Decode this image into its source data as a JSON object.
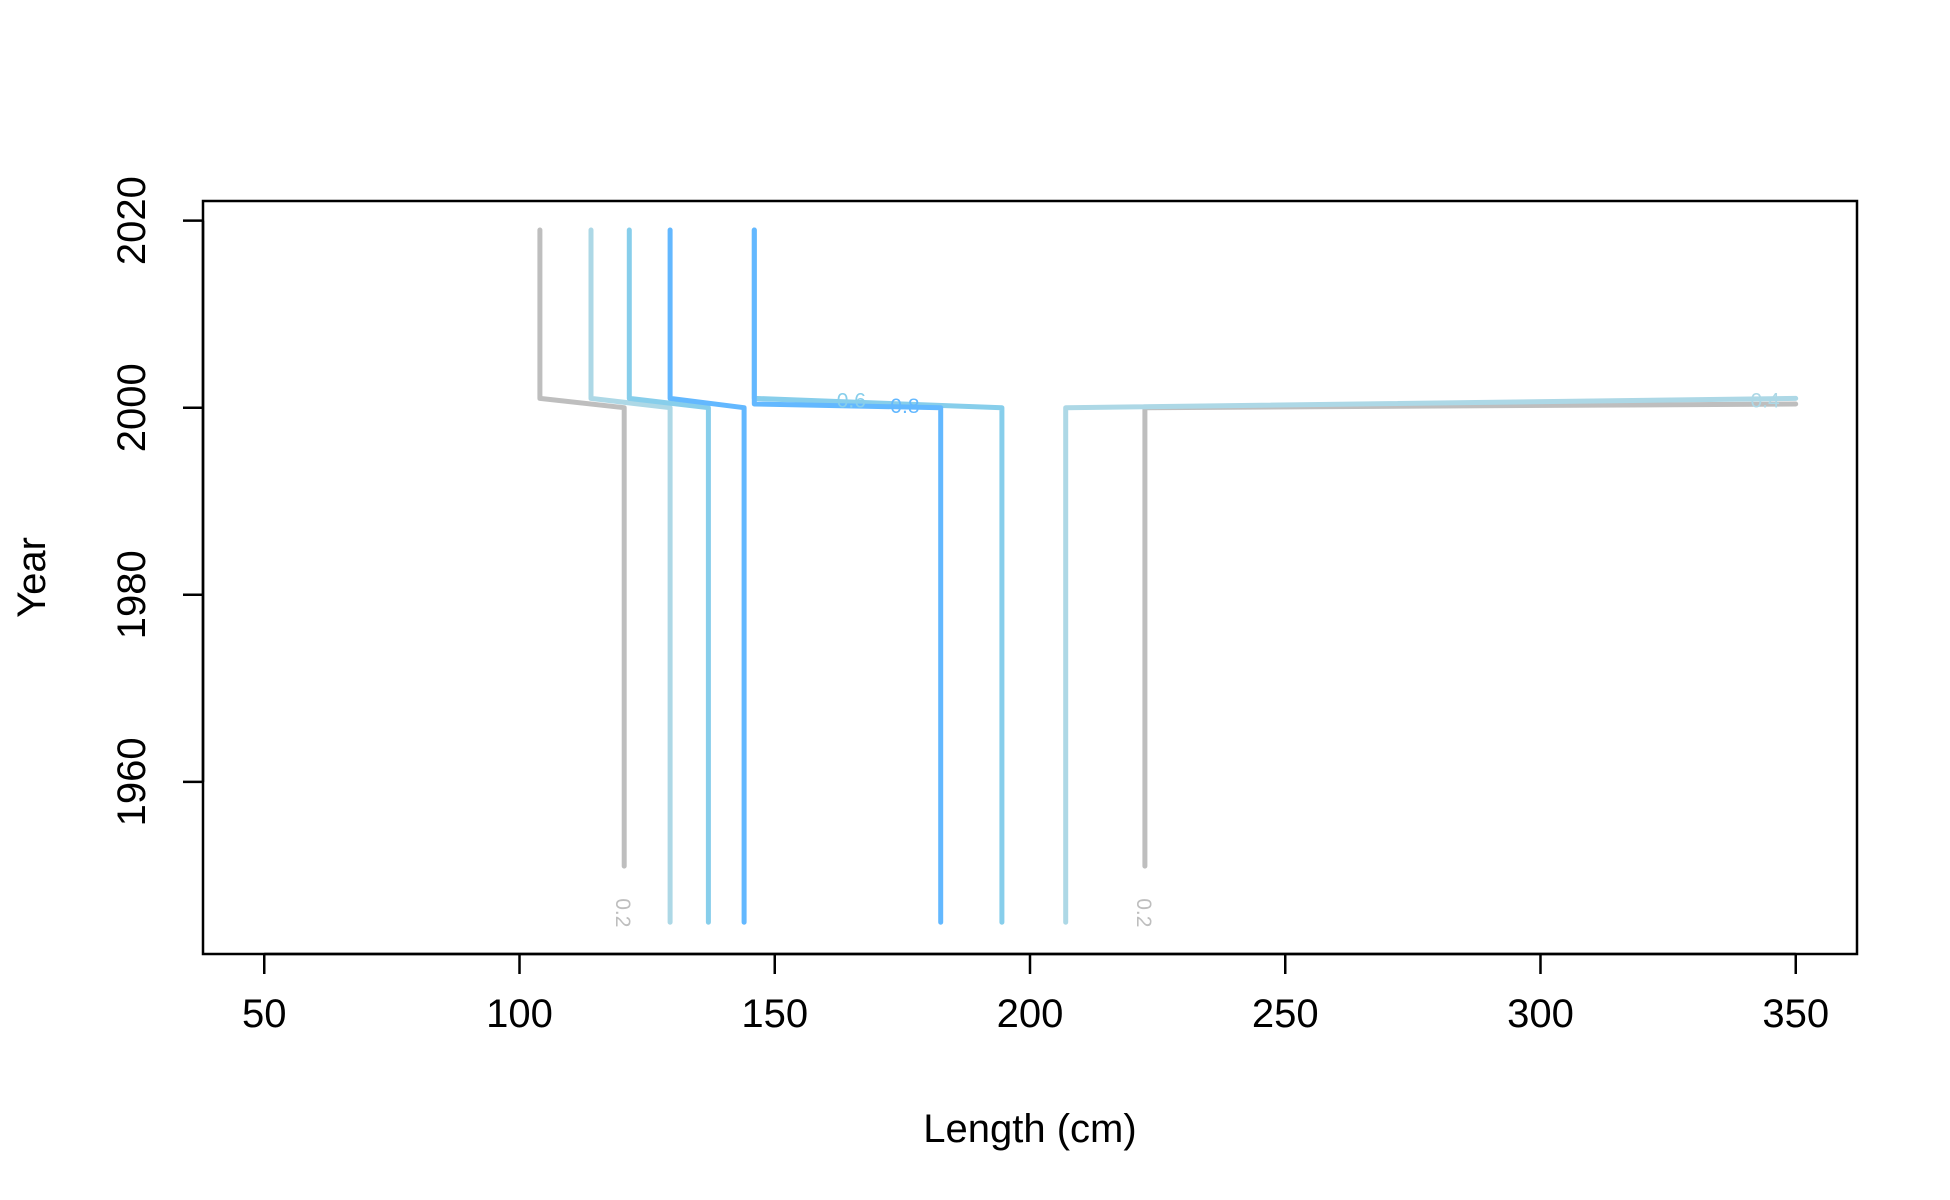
{
  "chart_data": {
    "type": "line",
    "title": "",
    "xlabel": "Length (cm)",
    "ylabel": "Year",
    "xlim": [
      38,
      362
    ],
    "ylim": [
      1941.6,
      2022.1
    ],
    "xticks": [
      50,
      100,
      150,
      200,
      250,
      300,
      350
    ],
    "yticks": [
      1960,
      1980,
      2000,
      2020
    ],
    "xtick_labels": [
      "50",
      "100",
      "150",
      "200",
      "250",
      "300",
      "350"
    ],
    "ytick_labels": [
      "1960",
      "1980",
      "2000",
      "2020"
    ],
    "grid": false,
    "legend": "none",
    "series": [
      {
        "label": "0.2",
        "color": "#bebebe",
        "points": [
          [
            120.5,
            1951
          ],
          [
            120.5,
            2000
          ],
          [
            104,
            2001
          ],
          [
            104,
            2019
          ]
        ]
      },
      {
        "label": "0.2",
        "color": "#bebebe",
        "points": [
          [
            222.5,
            1951
          ],
          [
            222.5,
            2000
          ],
          [
            350,
            2000.4
          ]
        ]
      },
      {
        "label": "0.4",
        "color": "#add8e6",
        "points": [
          [
            129.5,
            1945
          ],
          [
            129.5,
            2000
          ],
          [
            114,
            2001
          ],
          [
            114,
            2019
          ]
        ]
      },
      {
        "label": "0.4",
        "color": "#add8e6",
        "points": [
          [
            207,
            1945
          ],
          [
            207,
            2000
          ],
          [
            350,
            2001
          ]
        ]
      },
      {
        "label": "0.6",
        "color": "#87ceeb",
        "points": [
          [
            137,
            1945
          ],
          [
            137,
            2000
          ],
          [
            121.5,
            2001
          ],
          [
            121.5,
            2019
          ]
        ]
      },
      {
        "label": "0.6",
        "color": "#87ceeb",
        "points": [
          [
            194.5,
            1945
          ],
          [
            194.5,
            2000
          ],
          [
            146,
            2001
          ],
          [
            146,
            2019
          ]
        ]
      },
      {
        "label": "0.8",
        "color": "#63b8ff",
        "points": [
          [
            144,
            1945
          ],
          [
            144,
            2000
          ],
          [
            129.5,
            2001
          ],
          [
            129.5,
            2019
          ]
        ]
      },
      {
        "label": "0.8",
        "color": "#63b8ff",
        "points": [
          [
            182.5,
            1945
          ],
          [
            182.5,
            2000
          ],
          [
            146,
            2000.4
          ],
          [
            146,
            2019
          ]
        ]
      }
    ],
    "annotations": [
      {
        "text": "0.2",
        "x": 120,
        "y": 1946,
        "rotate": 90,
        "color": "#bebebe"
      },
      {
        "text": "0.2",
        "x": 222,
        "y": 1946,
        "rotate": 90,
        "color": "#bebebe"
      },
      {
        "text": "0.6",
        "x": 165,
        "y": 2000.6,
        "rotate": 0,
        "color": "#87ceeb"
      },
      {
        "text": "0.8",
        "x": 175.5,
        "y": 2000,
        "rotate": 0,
        "color": "#63b8ff"
      },
      {
        "text": "0.4",
        "x": 344,
        "y": 2000.6,
        "rotate": 0,
        "color": "#add8e6"
      }
    ]
  }
}
